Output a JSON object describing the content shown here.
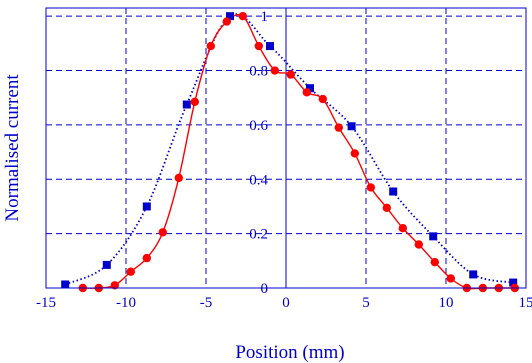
{
  "chart_data": {
    "type": "scatter",
    "title": "",
    "xlabel": "Position (mm)",
    "ylabel": "Normalised current",
    "xlim": [
      -15,
      15
    ],
    "ylim": [
      0,
      1.03
    ],
    "x_ticks": [
      -15,
      -10,
      -5,
      0,
      5,
      10,
      15
    ],
    "y_ticks": [
      0,
      0.2,
      0.4,
      0.6,
      0.8,
      1
    ],
    "x_tick_labels": [
      "-15",
      "-10",
      "-5",
      "0",
      "5",
      "10",
      "15"
    ],
    "y_tick_labels": [
      "0",
      "0.2",
      "0.4",
      "0.6",
      "0.8",
      "1"
    ],
    "grid": true,
    "grid_style": "dashed",
    "colors": {
      "axis": "#0000cc",
      "grid": "#0000cc",
      "red_series": "#ff0000",
      "blue_series": "#0000cc"
    },
    "series": [
      {
        "color": "#0000cc",
        "marker": "square",
        "line": "dotted",
        "x": [
          -13.8,
          -11.2,
          -8.7,
          -6.2,
          -3.5,
          -1.0,
          1.5,
          4.1,
          6.7,
          9.2,
          11.7,
          14.2
        ],
        "y": [
          0.013,
          0.085,
          0.3,
          0.675,
          1.0,
          0.89,
          0.735,
          0.595,
          0.355,
          0.19,
          0.05,
          0.02
        ]
      },
      {
        "color": "#ff0000",
        "marker": "circle",
        "line": "solid",
        "x": [
          -12.7,
          -11.7,
          -10.7,
          -9.7,
          -8.7,
          -7.7,
          -6.7,
          -5.7,
          -4.7,
          -3.7,
          -2.7,
          -1.7,
          -0.7,
          0.3,
          1.3,
          2.3,
          3.3,
          4.3,
          5.3,
          6.3,
          7.3,
          8.3,
          9.3,
          10.3,
          11.3,
          12.3,
          13.3,
          14.3
        ],
        "y": [
          0.0,
          0.0,
          0.01,
          0.06,
          0.11,
          0.205,
          0.405,
          0.685,
          0.89,
          0.98,
          1.0,
          0.89,
          0.8,
          0.785,
          0.72,
          0.695,
          0.59,
          0.495,
          0.37,
          0.295,
          0.22,
          0.16,
          0.095,
          0.035,
          0.0,
          0.0,
          0.0,
          0.0
        ]
      }
    ]
  }
}
